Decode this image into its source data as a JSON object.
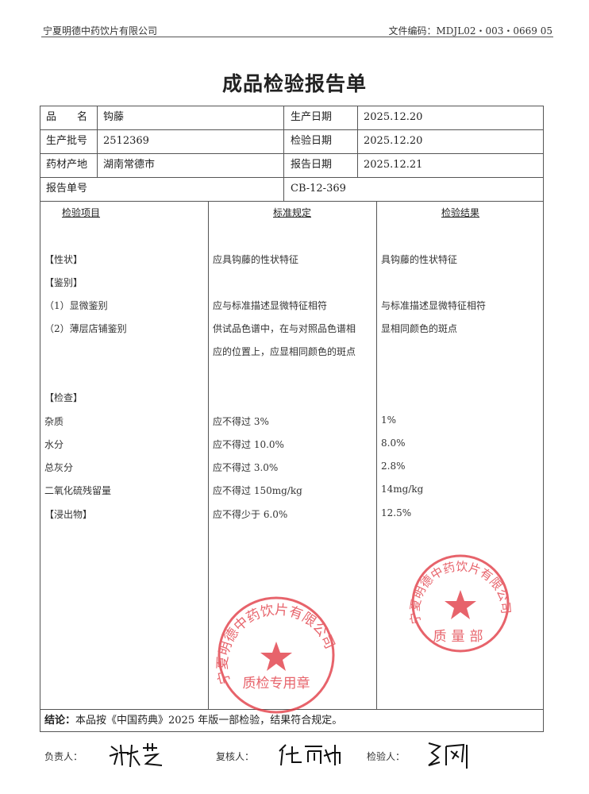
{
  "header": {
    "company": "宁夏明德中药饮片有限公司",
    "file_code": "文件编码：MDJL02・003・0669 05"
  },
  "title": "成品检验报告单",
  "info": {
    "product_name_label": "品　　名",
    "product_name": "钩藤",
    "production_date_label": "生产日期",
    "production_date": "2025.12.20",
    "batch_label": "生产批号",
    "batch": "2512369",
    "inspection_date_label": "检验日期",
    "inspection_date": "2025.12.20",
    "origin_label": "药材产地",
    "origin": "湖南常德市",
    "report_date_label": "报告日期",
    "report_date": "2025.12.21",
    "report_no_label": "报告单号",
    "report_no": "CB-12-369"
  },
  "columns": [
    "检验项目",
    "标准规定",
    "检验结果"
  ],
  "rows": [
    {
      "item": "【性状】",
      "standard": "应具钩藤的性状特征",
      "result": "具钩藤的性状特征"
    },
    {
      "item": "【鉴别】",
      "standard": "",
      "result": ""
    },
    {
      "item": "（1）显微鉴别",
      "standard": "应与标准描述显微特征相符",
      "result": "与标准描述显微特征相符"
    },
    {
      "item": "（2）薄层店铺鉴别",
      "standard": "供试品色谱中，在与对照品色谱相",
      "result": "显相同颜色的斑点"
    },
    {
      "item": "",
      "standard": "应的位置上，应显相同颜色的斑点",
      "result": ""
    },
    {
      "item": "【检查】",
      "standard": "",
      "result": ""
    },
    {
      "item": "杂质",
      "standard": "应不得过 3%",
      "result": "1%"
    },
    {
      "item": "水分",
      "standard": "应不得过 10.0%",
      "result": "8.0%"
    },
    {
      "item": "总灰分",
      "standard": "应不得过 3.0%",
      "result": "2.8%"
    },
    {
      "item": "二氧化硫残留量",
      "standard": "应不得过 150mg/kg",
      "result": "14mg/kg"
    },
    {
      "item": "【浸出物】",
      "standard": "应不得少于 6.0%",
      "result": "12.5%"
    }
  ],
  "conclusion": {
    "label": "结论：",
    "text": "本品按《中国药典》2025 年版一部检验，结果符合规定。"
  },
  "signatures": {
    "responsible_label": "负责人：",
    "reviewer_label": "复核人：",
    "inspector_label": "检验人："
  },
  "stamps": {
    "top": {
      "ring": "宁夏明德中药饮片有限公司",
      "center": "质量部"
    },
    "bottom": {
      "ring": "宁夏明德中药饮片有限公司",
      "center": "质检专用章"
    }
  },
  "colors": {
    "stamp": "#e0303a",
    "line": "#555555"
  }
}
